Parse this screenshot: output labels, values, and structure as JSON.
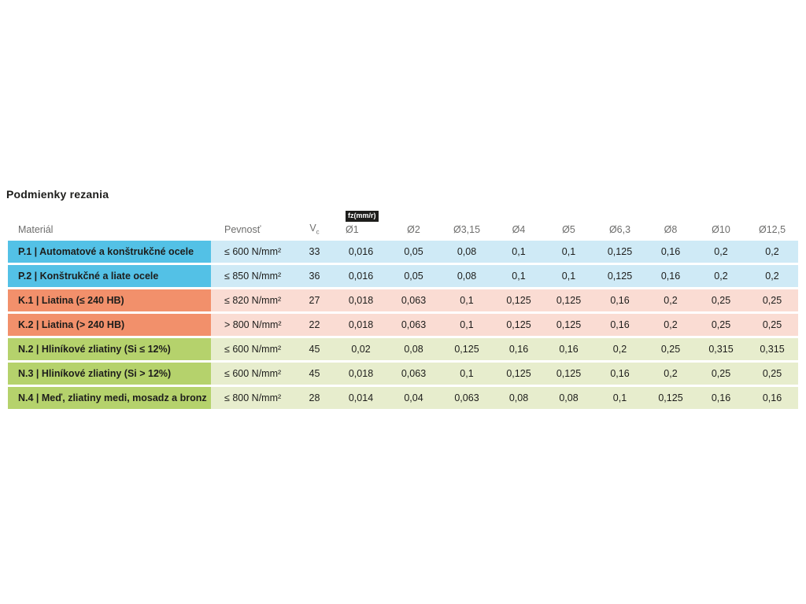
{
  "chart_data": {
    "type": "table",
    "title": "Podmienky rezania",
    "columns": {
      "material": "Materiál",
      "strength": "Pevnosť",
      "vc_label": "V",
      "vc_sub": "c",
      "fz_unit_badge": "fz(mm/r)",
      "diameters": [
        "Ø1",
        "Ø2",
        "Ø3,15",
        "Ø4",
        "Ø5",
        "Ø6,3",
        "Ø8",
        "Ø10",
        "Ø12,5"
      ]
    },
    "rows": [
      {
        "group": "P",
        "material": "P.1 | Automatové a konštrukčné ocele",
        "strength": "≤ 600 N/mm²",
        "vc": "33",
        "fz": [
          "0,016",
          "0,05",
          "0,08",
          "0,1",
          "0,1",
          "0,125",
          "0,16",
          "0,2",
          "0,2"
        ]
      },
      {
        "group": "P",
        "material": "P.2 | Konštrukčné a liate ocele",
        "strength": "≤ 850 N/mm²",
        "vc": "36",
        "fz": [
          "0,016",
          "0,05",
          "0,08",
          "0,1",
          "0,1",
          "0,125",
          "0,16",
          "0,2",
          "0,2"
        ]
      },
      {
        "group": "K",
        "material": "K.1 | Liatina (≤ 240 HB)",
        "strength": "≤ 820 N/mm²",
        "vc": "27",
        "fz": [
          "0,018",
          "0,063",
          "0,1",
          "0,125",
          "0,125",
          "0,16",
          "0,2",
          "0,25",
          "0,25"
        ]
      },
      {
        "group": "K",
        "material": "K.2 | Liatina (> 240 HB)",
        "strength": "> 800 N/mm²",
        "vc": "22",
        "fz": [
          "0,018",
          "0,063",
          "0,1",
          "0,125",
          "0,125",
          "0,16",
          "0,2",
          "0,25",
          "0,25"
        ]
      },
      {
        "group": "N",
        "material": "N.2 | Hliníkové zliatiny (Si ≤ 12%)",
        "strength": "≤ 600 N/mm²",
        "vc": "45",
        "fz": [
          "0,02",
          "0,08",
          "0,125",
          "0,16",
          "0,16",
          "0,2",
          "0,25",
          "0,315",
          "0,315"
        ]
      },
      {
        "group": "N",
        "material": "N.3 | Hliníkové zliatiny (Si > 12%)",
        "strength": "≤ 600 N/mm²",
        "vc": "45",
        "fz": [
          "0,018",
          "0,063",
          "0,1",
          "0,125",
          "0,125",
          "0,16",
          "0,2",
          "0,25",
          "0,25"
        ]
      },
      {
        "group": "N",
        "material": "N.4 | Meď, zliatiny medi, mosadz a bronz",
        "strength": "≤ 800 N/mm²",
        "vc": "28",
        "fz": [
          "0,014",
          "0,04",
          "0,063",
          "0,08",
          "0,08",
          "0,1",
          "0,125",
          "0,16",
          "0,16"
        ]
      }
    ],
    "group_colors": {
      "P": {
        "label_bg": "#53c1e6",
        "row_bg": "#cfeaf6"
      },
      "K": {
        "label_bg": "#f2906b",
        "row_bg": "#fadcd3"
      },
      "N": {
        "label_bg": "#b5d26c",
        "row_bg": "#e7edcd"
      }
    },
    "text_color": "#1d1d1b",
    "header_text_color": "#6e6e6d",
    "badge_bg": "#1d1d1b",
    "badge_text_color": "#ffffff"
  }
}
